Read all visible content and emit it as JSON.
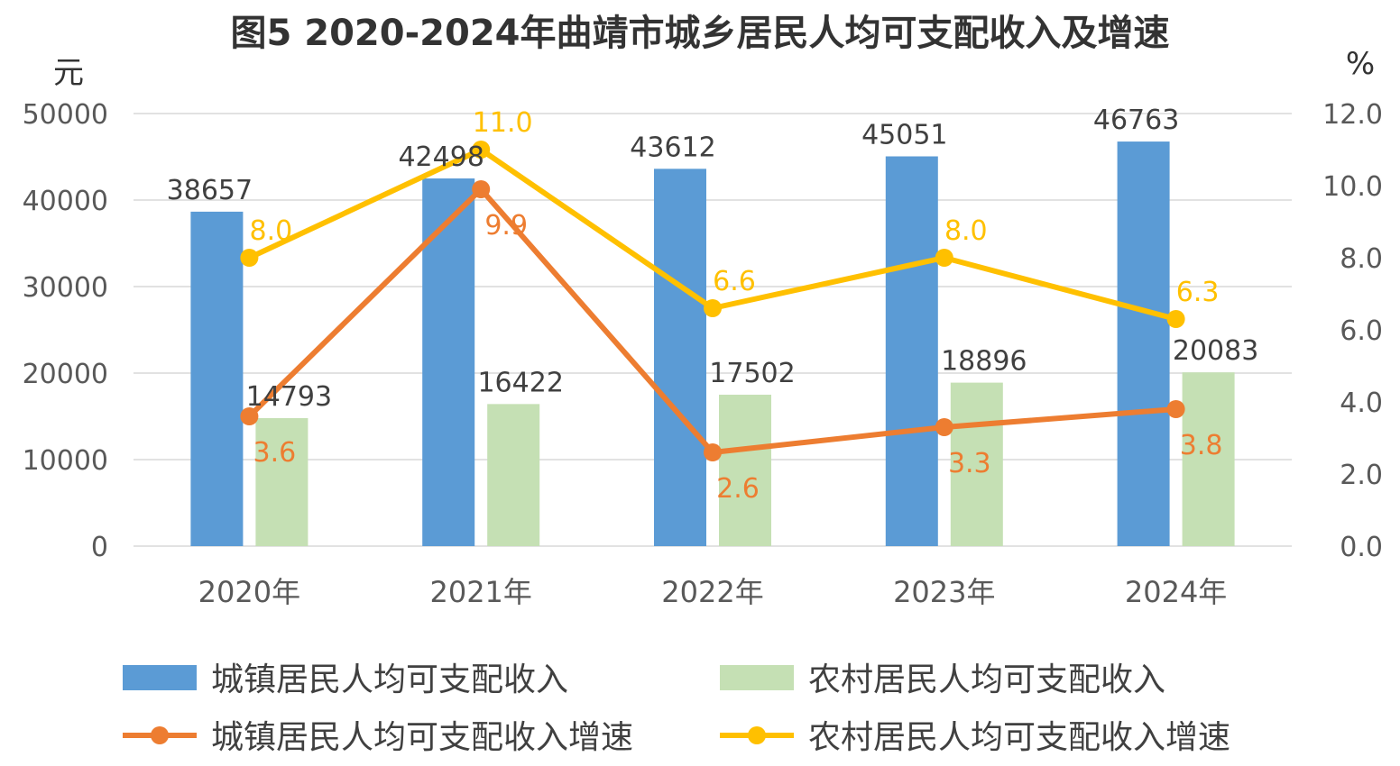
{
  "chart_data": {
    "type": "bar",
    "title": "图5 2020-2024年曲靖市城乡居民人均可支配收入及增速",
    "ylabel_left": "元",
    "ylabel_right": "%",
    "categories": [
      "2020年",
      "2021年",
      "2022年",
      "2023年",
      "2024年"
    ],
    "y_left_range": [
      0,
      50000
    ],
    "y_left_ticks": [
      "0",
      "10000",
      "20000",
      "30000",
      "40000",
      "50000"
    ],
    "y_right_range": [
      0,
      12
    ],
    "y_right_ticks": [
      "0.0",
      "2.0",
      "4.0",
      "6.0",
      "8.0",
      "10.0",
      "12.0"
    ],
    "grid": true,
    "legend_position": "bottom",
    "bar_series": [
      {
        "name": "城镇居民人均可支配收入",
        "values": [
          38657,
          42498,
          43612,
          45051,
          46763
        ],
        "labels": [
          "38657",
          "42498",
          "43612",
          "45051",
          "46763"
        ],
        "color": "#5b9bd5"
      },
      {
        "name": "农村居民人均可支配收入",
        "values": [
          14793,
          16422,
          17502,
          18896,
          20083
        ],
        "labels": [
          "14793",
          "16422",
          "17502",
          "18896",
          "20083"
        ],
        "color": "#c5e0b4"
      }
    ],
    "line_series": [
      {
        "name": "城镇居民人均可支配收入增速",
        "values": [
          3.6,
          9.9,
          2.6,
          3.3,
          3.8
        ],
        "labels": [
          "3.6",
          "9.9",
          "2.6",
          "3.3",
          "3.8"
        ],
        "color": "#ed7d31"
      },
      {
        "name": "农村居民人均可支配收入增速",
        "values": [
          8.0,
          11.0,
          6.6,
          8.0,
          6.3
        ],
        "labels": [
          "8.0",
          "11.0",
          "6.6",
          "8.0",
          "6.3"
        ],
        "color": "#ffc000"
      }
    ]
  }
}
